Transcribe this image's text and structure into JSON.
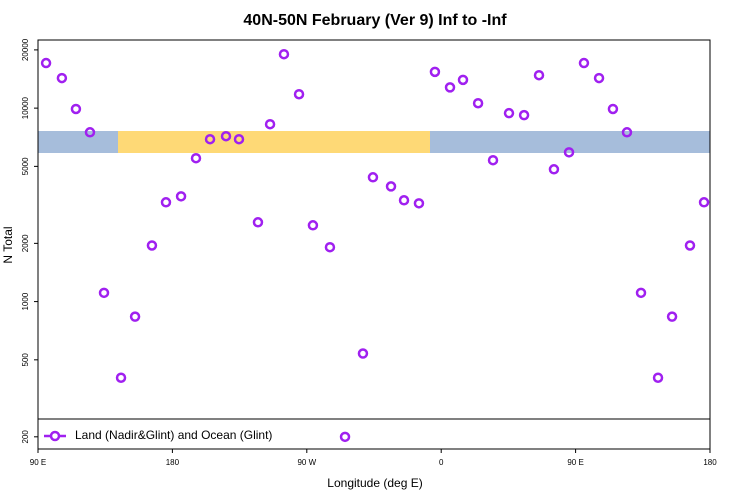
{
  "chart_data": {
    "type": "scatter",
    "title": "40N-50N February (Ver 9)   Inf to -Inf",
    "x_label": "Longitude (deg E)",
    "y_label": "N Total",
    "log_y": true,
    "xlim": [
      90,
      540
    ],
    "ylim": [
      173,
      22500
    ],
    "xticks": [
      {
        "value": 90,
        "label": "90 E"
      },
      {
        "value": 180,
        "label": "180"
      },
      {
        "value": 270,
        "label": "90 W"
      },
      {
        "value": 360,
        "label": "0"
      },
      {
        "value": 450,
        "label": "90 E"
      },
      {
        "value": 540,
        "label": "180"
      }
    ],
    "yticks": [
      200,
      500,
      1000,
      2000,
      5000,
      10000,
      20000
    ],
    "legend": "bottom-left",
    "series": [
      {
        "name": "Land (Nadir&Glint) and Ocean (Glint)",
        "color": "#a020f0",
        "x": [
          95.4,
          106,
          115.4,
          124.8,
          134.2,
          145.6,
          155,
          166.3,
          175.7,
          185.8,
          195.8,
          205.2,
          215.9,
          224.6,
          237.3,
          245.4,
          254.7,
          264.8,
          274.1,
          285.5,
          295.6,
          307.6,
          314.3,
          326.4,
          335.1,
          345.1,
          355.8,
          365.9,
          374.6,
          384.7,
          394.7,
          405.4,
          415.5,
          425.5,
          435.5,
          445.6,
          455.6,
          465.7,
          475,
          484.4,
          493.8,
          505.2,
          514.6,
          526.6,
          536
        ],
        "values": [
          17100,
          14300,
          9900,
          7500,
          1110,
          404,
          836,
          1950,
          3260,
          3500,
          5510,
          6910,
          7160,
          6910,
          2570,
          8260,
          19000,
          11800,
          2480,
          1910,
          200,
          539,
          4390,
          3940,
          3340,
          3220,
          15400,
          12800,
          14000,
          10600,
          5380,
          9420,
          9200,
          14800,
          4830,
          5910,
          17100,
          14300,
          9900,
          7500,
          1110,
          404,
          836,
          1950,
          3260
        ]
      }
    ]
  }
}
